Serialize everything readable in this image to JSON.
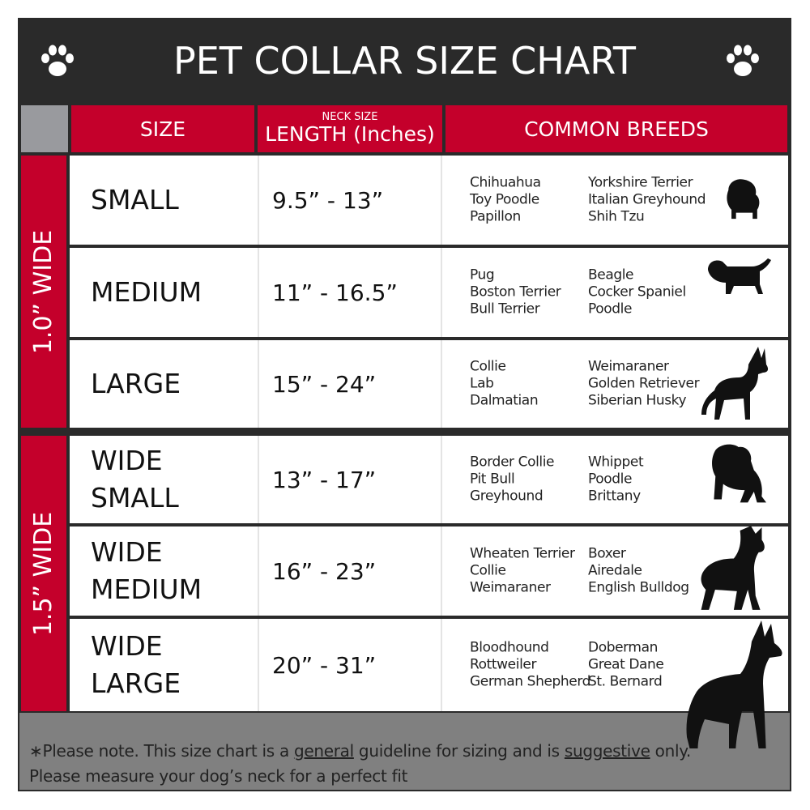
{
  "title": "PET COLLAR SIZE CHART",
  "header": {
    "size": "SIZE",
    "neck_size": "NECK SIZE",
    "length": "LENGTH (Inches)",
    "breeds": "COMMON BREEDS"
  },
  "groups": [
    {
      "label": "1.0” WIDE"
    },
    {
      "label": "1.5” WIDE"
    }
  ],
  "rows": [
    {
      "size": "SMALL",
      "length": "9.5” - 13”",
      "breeds_a": [
        "Chihuahua",
        "Toy Poodle",
        "Papillon"
      ],
      "breeds_b": [
        "Yorkshire Terrier",
        "Italian Greyhound",
        "Shih Tzu"
      ]
    },
    {
      "size": "MEDIUM",
      "length": "11” - 16.5”",
      "breeds_a": [
        "Pug",
        "Boston Terrier",
        "Bull Terrier"
      ],
      "breeds_b": [
        "Beagle",
        "Cocker Spaniel",
        "Poodle"
      ]
    },
    {
      "size": "LARGE",
      "length": "15” - 24”",
      "breeds_a": [
        "Collie",
        "Lab",
        "Dalmatian"
      ],
      "breeds_b": [
        "Weimaraner",
        "Golden Retriever",
        "Siberian Husky"
      ]
    },
    {
      "size": "WIDE SMALL",
      "length": "13” - 17”",
      "breeds_a": [
        "Border Collie",
        "Pit Bull",
        "Greyhound"
      ],
      "breeds_b": [
        "Whippet",
        "Poodle",
        "Brittany"
      ]
    },
    {
      "size": "WIDE MEDIUM",
      "length": "16” - 23”",
      "breeds_a": [
        "Wheaten Terrier",
        "Collie",
        "Weimaraner"
      ],
      "breeds_b": [
        "Boxer",
        "Airedale",
        "English Bulldog"
      ]
    },
    {
      "size": "WIDE LARGE",
      "length": "20” - 31”",
      "breeds_a": [
        "Bloodhound",
        "Rottweiler",
        "German Shepherd"
      ],
      "breeds_b": [
        "Doberman",
        "Great Dane",
        "St. Bernard"
      ]
    }
  ],
  "note": {
    "p1": "∗Please note. This size chart is a ",
    "u1": "general",
    "p2": " guideline for sizing and is ",
    "u2": "suggestive",
    "p3": " only.",
    "line2": "Please measure your dog’s neck for a perfect fit"
  },
  "colors": {
    "red": "#c4002b",
    "dark": "#2a2a2a",
    "gray": "#808080"
  },
  "icons": [
    "paw-icon",
    "dog-silhouette"
  ]
}
